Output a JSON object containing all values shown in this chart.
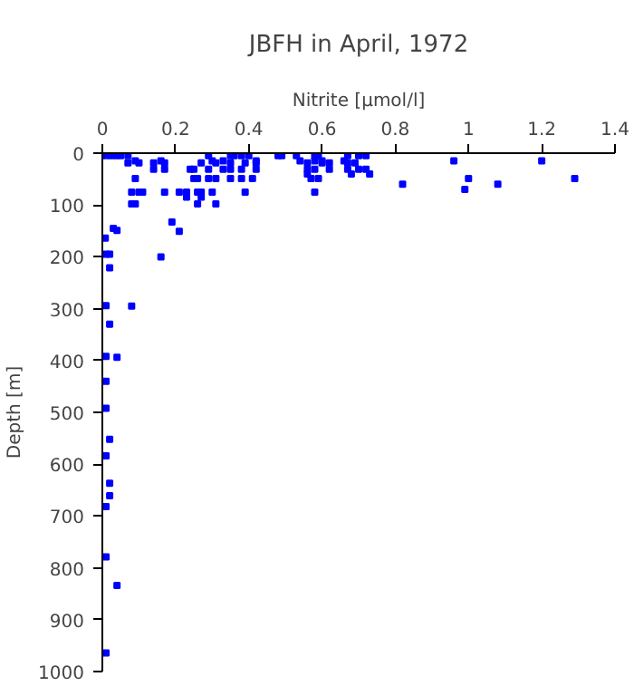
{
  "chart_data": {
    "type": "scatter",
    "title": "JBFH in April, 1972",
    "xlabel": "Nitrite [µmol/l]",
    "ylabel": "Depth [m]",
    "xlim": [
      0,
      1.4
    ],
    "xticks": [
      0,
      0.2,
      0.4,
      0.6,
      0.8,
      1,
      1.2,
      1.4
    ],
    "ylim": [
      1000,
      0
    ],
    "yticks": [
      0,
      100,
      200,
      300,
      400,
      500,
      600,
      700,
      800,
      900,
      1000
    ],
    "grid": false,
    "marker": "square",
    "series": [
      {
        "color": "#0000ff",
        "x": [
          0.003,
          0.02,
          0.036,
          0.05,
          0.07,
          0.29,
          0.35,
          0.36,
          0.38,
          0.4,
          0.48,
          0.49,
          0.53,
          0.58,
          0.59,
          0.67,
          0.7,
          0.72,
          0.09,
          0.16,
          0.3,
          0.33,
          0.42,
          0.54,
          0.58,
          0.6,
          0.66,
          0.96,
          1.2,
          0.07,
          0.1,
          0.14,
          0.17,
          0.27,
          0.31,
          0.35,
          0.39,
          0.42,
          0.56,
          0.6,
          0.62,
          0.67,
          0.69,
          0.14,
          0.17,
          0.24,
          0.25,
          0.29,
          0.33,
          0.35,
          0.38,
          0.42,
          0.56,
          0.58,
          0.62,
          0.67,
          0.7,
          0.72,
          0.56,
          0.68,
          0.73,
          0.09,
          0.25,
          0.26,
          0.29,
          0.31,
          0.35,
          0.38,
          0.41,
          0.57,
          0.59,
          1.0,
          1.29,
          0.82,
          1.08,
          0.99,
          0.08,
          0.1,
          0.11,
          0.17,
          0.21,
          0.23,
          0.26,
          0.27,
          0.3,
          0.39,
          0.58,
          0.23,
          0.27,
          0.08,
          0.09,
          0.26,
          0.31,
          0.008,
          0.01,
          0.02,
          0.02,
          0.03,
          0.04,
          0.16,
          0.19,
          0.21,
          0.01,
          0.08,
          0.02,
          0.01,
          0.04,
          0.01,
          0.01,
          0.02,
          0.01,
          0.02,
          0.02,
          0.01,
          0.01,
          0.04,
          0.01
        ],
        "values": [
          5,
          5,
          5,
          5,
          5,
          5,
          5,
          5,
          5,
          5,
          5,
          5,
          5,
          5,
          5,
          5,
          5,
          5,
          15,
          15,
          15,
          15,
          15,
          15,
          15,
          15,
          15,
          15,
          15,
          19,
          19,
          19,
          19,
          19,
          19,
          19,
          19,
          19,
          19,
          19,
          19,
          19,
          19,
          31,
          31,
          31,
          31,
          31,
          31,
          31,
          31,
          31,
          31,
          31,
          31,
          31,
          31,
          31,
          40,
          40,
          40,
          49,
          49,
          49,
          49,
          49,
          49,
          49,
          49,
          49,
          49,
          49,
          49,
          60,
          60,
          70,
          75,
          75,
          75,
          75,
          75,
          75,
          75,
          75,
          75,
          75,
          75,
          85,
          85,
          98,
          98,
          98,
          98,
          164,
          195,
          195,
          221,
          145,
          149,
          200,
          133,
          151,
          294,
          295,
          330,
          392,
          394,
          440,
          492,
          552,
          584,
          637,
          661,
          682,
          779,
          834,
          964
        ]
      }
    ]
  }
}
